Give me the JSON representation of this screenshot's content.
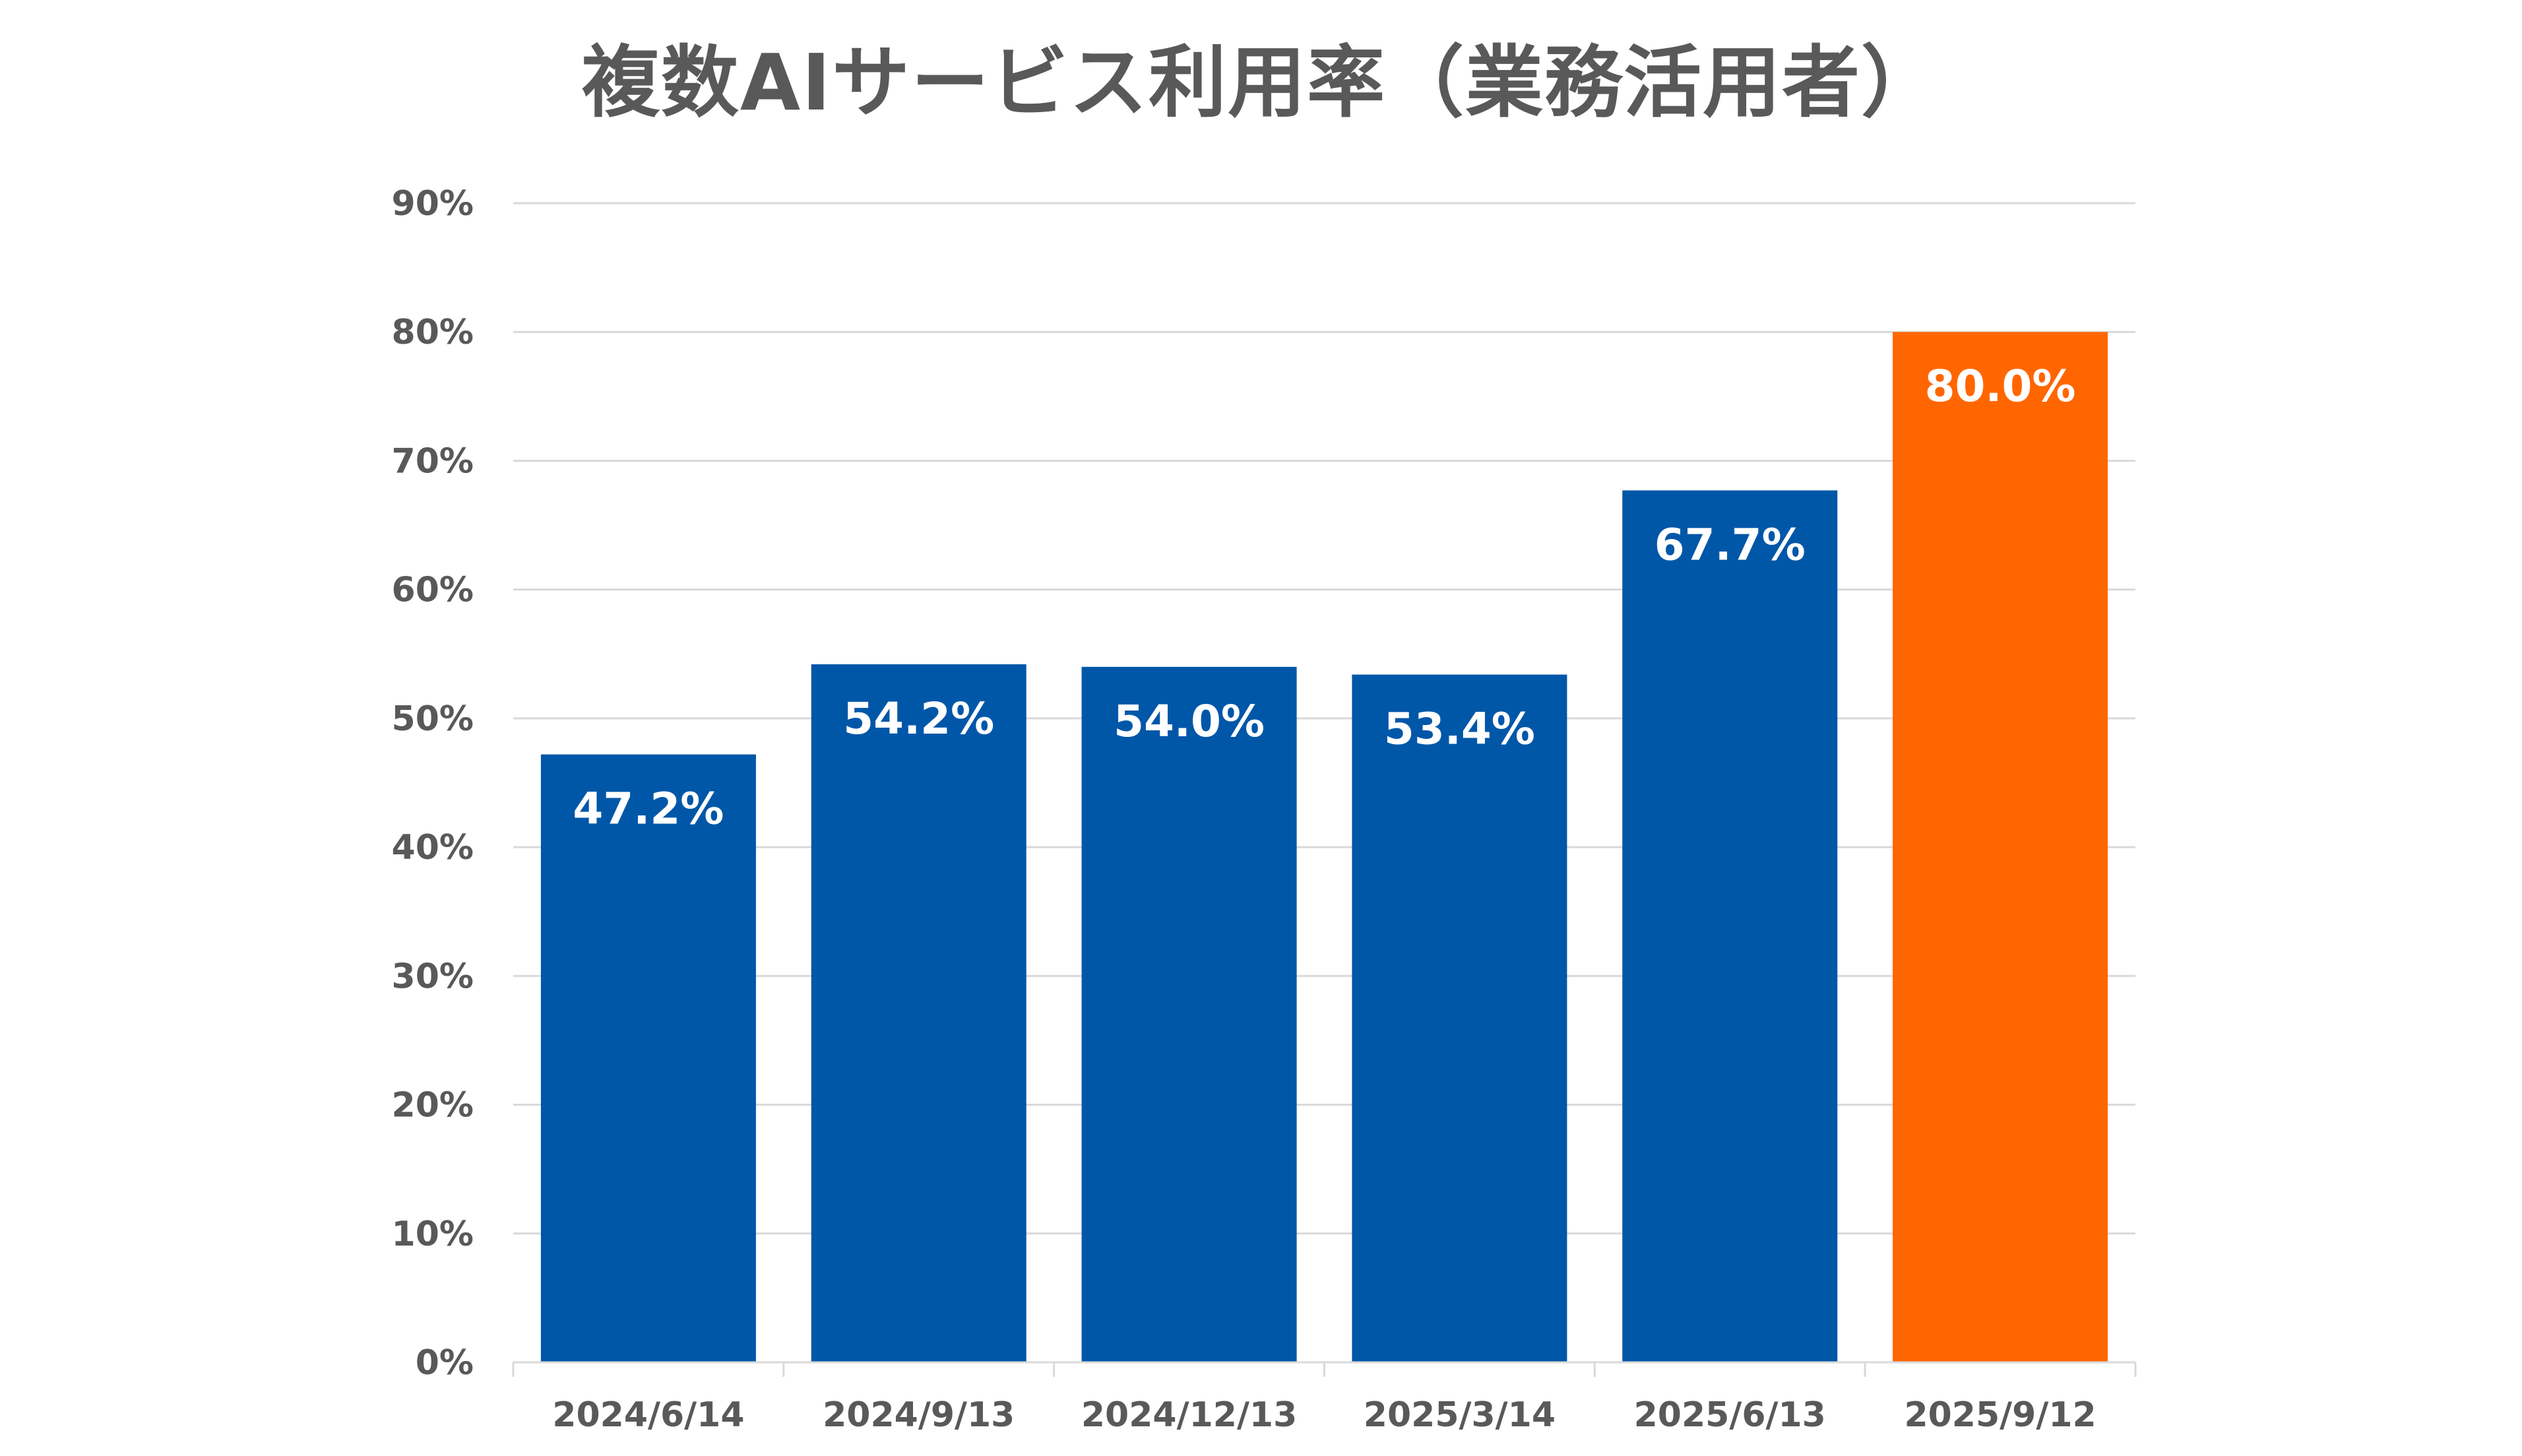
{
  "chart_data": {
    "type": "bar",
    "title": "複数AIサービス利用率（業務活用者）",
    "xlabel": "",
    "ylabel": "",
    "categories": [
      "2024/6/14",
      "2024/9/13",
      "2024/12/13",
      "2025/3/14",
      "2025/6/13",
      "2025/9/12"
    ],
    "values": [
      47.2,
      54.2,
      54.0,
      53.4,
      67.7,
      80.0
    ],
    "data_labels": [
      "47.2%",
      "54.2%",
      "54.0%",
      "53.4%",
      "67.7%",
      "80.0%"
    ],
    "ylim": [
      0,
      90
    ],
    "yticks": [
      0,
      10,
      20,
      30,
      40,
      50,
      60,
      70,
      80,
      90
    ],
    "ytick_labels": [
      "0%",
      "10%",
      "20%",
      "30%",
      "40%",
      "50%",
      "60%",
      "70%",
      "80%",
      "90%"
    ],
    "grid": true,
    "legend": "none",
    "colors": {
      "default_bar": "#0057A8",
      "highlight_bar": "#FF6600",
      "gridline": "#D9D9D9",
      "axis_text": "#595959",
      "label_text": "#FFFFFF"
    },
    "highlight_index": 5
  }
}
